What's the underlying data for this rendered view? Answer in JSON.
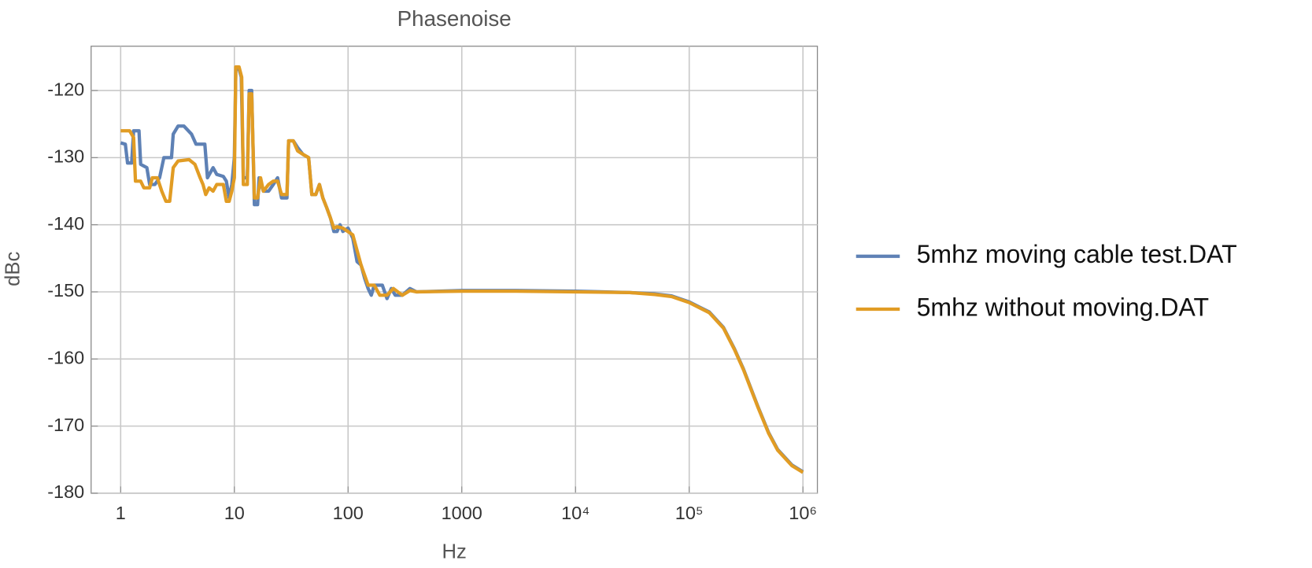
{
  "chart_data": {
    "type": "line",
    "title": "Phasenoise",
    "x_label": "Hz",
    "y_label": "dBc",
    "xscale": "log",
    "grid": true,
    "legend": "right",
    "xlim": [
      0.55,
      1340000
    ],
    "ylim": [
      -180,
      -113.4
    ],
    "xticks": [
      1,
      10,
      100,
      1000,
      {
        "value": 10000,
        "label": "10⁴"
      },
      {
        "value": 100000,
        "label": "10⁵"
      },
      {
        "value": 1000000,
        "label": "10⁶"
      }
    ],
    "yticks": [
      -180,
      -170,
      -160,
      -150,
      -140,
      -130,
      -120
    ],
    "series": [
      {
        "name": "5mhz moving cable test.DAT",
        "color": "#5e81b5",
        "x": [
          1,
          1.1,
          1.15,
          1.25,
          1.3,
          1.45,
          1.5,
          1.7,
          1.8,
          2.0,
          2.2,
          2.4,
          2.8,
          2.9,
          3.2,
          3.6,
          4.2,
          4.6,
          5.5,
          5.8,
          6.5,
          7,
          8,
          8.5,
          9,
          9.5,
          10,
          10.3,
          11,
          11.5,
          12,
          13,
          13.5,
          14.2,
          15,
          16,
          16.5,
          18,
          20,
          22,
          24,
          26,
          29,
          30,
          33,
          36,
          40,
          45,
          48,
          52,
          56,
          60,
          65,
          70,
          75,
          80,
          85,
          90,
          100,
          110,
          120,
          130,
          140,
          150,
          160,
          170,
          200,
          220,
          240,
          260,
          300,
          350,
          400,
          1000,
          3000,
          10000,
          30000,
          50000,
          70000,
          100000,
          150000,
          200000,
          250000,
          300000,
          400000,
          500000,
          600000,
          800000,
          1000000
        ],
        "values": [
          -127.8,
          -128,
          -130.8,
          -130.8,
          -126,
          -126,
          -131,
          -131.5,
          -134,
          -134,
          -133,
          -130,
          -130,
          -126.5,
          -125.3,
          -125.3,
          -126.5,
          -128,
          -128,
          -133,
          -131.5,
          -132.5,
          -132.8,
          -133.5,
          -136,
          -134,
          -130,
          -116.8,
          -116.8,
          -118,
          -133,
          -133,
          -120,
          -120,
          -137,
          -137,
          -133,
          -135,
          -135,
          -134,
          -133,
          -136,
          -136,
          -127.5,
          -127.5,
          -128.5,
          -129.5,
          -130,
          -135.5,
          -135.5,
          -134,
          -136,
          -137.5,
          -139,
          -141,
          -141,
          -140,
          -141,
          -140.5,
          -142,
          -145.5,
          -146,
          -148,
          -149.5,
          -150.5,
          -149,
          -149,
          -151,
          -149.5,
          -150.5,
          -150.5,
          -149.5,
          -150,
          -149.8,
          -149.8,
          -149.9,
          -150.1,
          -150.3,
          -150.6,
          -151.5,
          -153,
          -155.3,
          -158.5,
          -161.5,
          -167,
          -171,
          -173.5,
          -175.8,
          -176.8
        ]
      },
      {
        "name": "5mhz without moving.DAT",
        "color": "#e19c24",
        "x": [
          1,
          1.2,
          1.3,
          1.35,
          1.5,
          1.6,
          1.8,
          1.9,
          2.1,
          2.3,
          2.5,
          2.7,
          2.9,
          3.2,
          4,
          4.5,
          5,
          5.3,
          5.6,
          6,
          6.5,
          7,
          8,
          8.5,
          9,
          9.5,
          10,
          10.3,
          11,
          11.6,
          12,
          13,
          13.5,
          14.2,
          15,
          16,
          17,
          18,
          20,
          22,
          24,
          26,
          29,
          30,
          33,
          36,
          40,
          45,
          48,
          52,
          56,
          60,
          65,
          70,
          75,
          80,
          90,
          110,
          130,
          150,
          170,
          190,
          220,
          250,
          300,
          350,
          400,
          1000,
          3000,
          10000,
          30000,
          50000,
          70000,
          100000,
          150000,
          200000,
          250000,
          300000,
          400000,
          500000,
          600000,
          800000,
          1000000
        ],
        "values": [
          -126,
          -126,
          -127,
          -133.5,
          -133.5,
          -134.5,
          -134.5,
          -133,
          -133,
          -135,
          -136.5,
          -136.5,
          -131.5,
          -130.5,
          -130.3,
          -131,
          -133,
          -134,
          -135.5,
          -134.5,
          -135,
          -134,
          -134,
          -136.5,
          -136.5,
          -135,
          -133,
          -116.5,
          -116.5,
          -118,
          -134,
          -134,
          -120.5,
          -120.5,
          -136,
          -136,
          -133,
          -135,
          -134,
          -133.5,
          -133.5,
          -135.5,
          -135.5,
          -127.5,
          -127.5,
          -129,
          -129.5,
          -130,
          -135.5,
          -135.5,
          -134,
          -136,
          -137.5,
          -139,
          -140.5,
          -140.3,
          -140.5,
          -141.5,
          -146,
          -149,
          -149,
          -150.5,
          -150.5,
          -149.5,
          -150.5,
          -149.8,
          -150,
          -149.9,
          -149.9,
          -150,
          -150.1,
          -150.4,
          -150.7,
          -151.6,
          -153.1,
          -155.4,
          -158.6,
          -161.6,
          -167.1,
          -171.1,
          -173.6,
          -175.9,
          -176.9
        ]
      }
    ]
  }
}
